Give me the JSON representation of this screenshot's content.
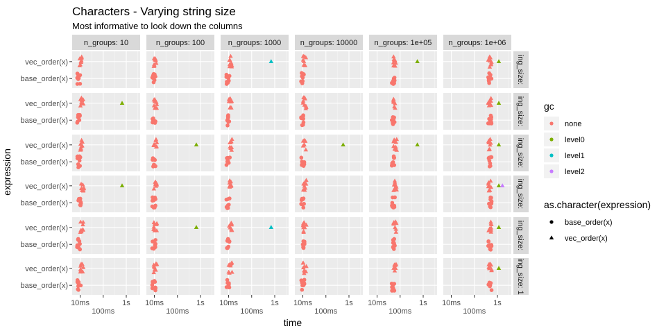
{
  "chart_data": {
    "type": "scatter",
    "title": "Characters - Varying string size",
    "subtitle": "Most informative to look down the columns",
    "xlabel": "time",
    "ylabel": "expression",
    "x_scale": "log10",
    "x_ticks": [
      "10ms",
      "100ms",
      "1s"
    ],
    "y_categories": [
      "vec_order(x)",
      "base_order(x)"
    ],
    "column_facets": [
      "n_groups: 10",
      "n_groups: 100",
      "n_groups: 1000",
      "n_groups: 10000",
      "n_groups: 1e+05",
      "n_groups: 1e+06"
    ],
    "row_facets": [
      "ing_size:",
      "ing_size:",
      "ing_size:",
      "ing_size:",
      "ing_size:",
      "ing_size: 1"
    ],
    "legend_color": {
      "title": "gc",
      "items": [
        {
          "label": "none",
          "color": "#F8766D"
        },
        {
          "label": "level0",
          "color": "#7CAE00"
        },
        {
          "label": "level1",
          "color": "#00BFC4"
        },
        {
          "label": "level2",
          "color": "#C77CFF"
        }
      ]
    },
    "legend_shape": {
      "title": "as.character(expression)",
      "items": [
        {
          "label": "base_order(x)",
          "shape": "circle"
        },
        {
          "label": "vec_order(x)",
          "shape": "triangle"
        }
      ]
    },
    "panels": [
      {
        "row": 0,
        "col": 0,
        "vec_ms": 11,
        "base_ms": 8.5,
        "gc_points": []
      },
      {
        "row": 0,
        "col": 1,
        "vec_ms": 11,
        "base_ms": 9.5,
        "gc_points": []
      },
      {
        "row": 0,
        "col": 2,
        "vec_ms": 12,
        "base_ms": 9.5,
        "gc_points": [
          {
            "series": "vec_order(x)",
            "gc": "level1",
            "ms": 700
          }
        ]
      },
      {
        "row": 0,
        "col": 3,
        "vec_ms": 12,
        "base_ms": 10,
        "gc_points": []
      },
      {
        "row": 0,
        "col": 4,
        "vec_ms": 60,
        "base_ms": 50,
        "gc_points": [
          {
            "series": "vec_order(x)",
            "gc": "level0",
            "ms": 560
          }
        ]
      },
      {
        "row": 0,
        "col": 5,
        "vec_ms": 470,
        "base_ms": 470,
        "gc_points": [
          {
            "series": "vec_order(x)",
            "gc": "level0",
            "ms": 1150
          }
        ]
      },
      {
        "row": 1,
        "col": 0,
        "vec_ms": 12,
        "base_ms": 8.5,
        "gc_points": [
          {
            "series": "vec_order(x)",
            "gc": "level0",
            "ms": 660
          }
        ]
      },
      {
        "row": 1,
        "col": 1,
        "vec_ms": 11,
        "base_ms": 9.5,
        "gc_points": []
      },
      {
        "row": 1,
        "col": 2,
        "vec_ms": 12,
        "base_ms": 9.5,
        "gc_points": []
      },
      {
        "row": 1,
        "col": 3,
        "vec_ms": 12,
        "base_ms": 10,
        "gc_points": []
      },
      {
        "row": 1,
        "col": 4,
        "vec_ms": 60,
        "base_ms": 50,
        "gc_points": []
      },
      {
        "row": 1,
        "col": 5,
        "vec_ms": 480,
        "base_ms": 470,
        "gc_points": [
          {
            "series": "vec_order(x)",
            "gc": "level0",
            "ms": 1150
          }
        ]
      },
      {
        "row": 2,
        "col": 0,
        "vec_ms": 12,
        "base_ms": 9,
        "gc_points": []
      },
      {
        "row": 2,
        "col": 1,
        "vec_ms": 11,
        "base_ms": 9.5,
        "gc_points": [
          {
            "series": "vec_order(x)",
            "gc": "level0",
            "ms": 660
          }
        ]
      },
      {
        "row": 2,
        "col": 2,
        "vec_ms": 12,
        "base_ms": 9.5,
        "gc_points": []
      },
      {
        "row": 2,
        "col": 3,
        "vec_ms": 12,
        "base_ms": 10,
        "gc_points": [
          {
            "series": "vec_order(x)",
            "gc": "level0",
            "ms": 560
          }
        ]
      },
      {
        "row": 2,
        "col": 4,
        "vec_ms": 60,
        "base_ms": 50,
        "gc_points": [
          {
            "series": "vec_order(x)",
            "gc": "level0",
            "ms": 560
          }
        ]
      },
      {
        "row": 2,
        "col": 5,
        "vec_ms": 470,
        "base_ms": 470,
        "gc_points": [
          {
            "series": "vec_order(x)",
            "gc": "level0",
            "ms": 1150
          }
        ]
      },
      {
        "row": 3,
        "col": 0,
        "vec_ms": 13,
        "base_ms": 9.5,
        "gc_points": [
          {
            "series": "vec_order(x)",
            "gc": "level0",
            "ms": 660
          }
        ]
      },
      {
        "row": 3,
        "col": 1,
        "vec_ms": 11,
        "base_ms": 9.5,
        "gc_points": []
      },
      {
        "row": 3,
        "col": 2,
        "vec_ms": 12,
        "base_ms": 9.5,
        "gc_points": []
      },
      {
        "row": 3,
        "col": 3,
        "vec_ms": 12,
        "base_ms": 10,
        "gc_points": []
      },
      {
        "row": 3,
        "col": 4,
        "vec_ms": 60,
        "base_ms": 50,
        "gc_points": []
      },
      {
        "row": 3,
        "col": 5,
        "vec_ms": 480,
        "base_ms": 470,
        "gc_points": [
          {
            "series": "vec_order(x)",
            "gc": "level0",
            "ms": 1150
          },
          {
            "series": "vec_order(x)",
            "gc": "level2",
            "ms": 1650
          }
        ]
      },
      {
        "row": 4,
        "col": 0,
        "vec_ms": 12,
        "base_ms": 8.5,
        "gc_points": []
      },
      {
        "row": 4,
        "col": 1,
        "vec_ms": 11,
        "base_ms": 9.5,
        "gc_points": [
          {
            "series": "vec_order(x)",
            "gc": "level0",
            "ms": 660
          }
        ]
      },
      {
        "row": 4,
        "col": 2,
        "vec_ms": 12,
        "base_ms": 9.5,
        "gc_points": [
          {
            "series": "vec_order(x)",
            "gc": "level1",
            "ms": 700
          }
        ]
      },
      {
        "row": 4,
        "col": 3,
        "vec_ms": 12,
        "base_ms": 10,
        "gc_points": []
      },
      {
        "row": 4,
        "col": 4,
        "vec_ms": 60,
        "base_ms": 50,
        "gc_points": []
      },
      {
        "row": 4,
        "col": 5,
        "vec_ms": 480,
        "base_ms": 470,
        "gc_points": [
          {
            "series": "vec_order(x)",
            "gc": "level0",
            "ms": 1150
          }
        ]
      },
      {
        "row": 5,
        "col": 0,
        "vec_ms": 12,
        "base_ms": 9,
        "gc_points": []
      },
      {
        "row": 5,
        "col": 1,
        "vec_ms": 11,
        "base_ms": 9.5,
        "gc_points": []
      },
      {
        "row": 5,
        "col": 2,
        "vec_ms": 12,
        "base_ms": 9.5,
        "gc_points": []
      },
      {
        "row": 5,
        "col": 3,
        "vec_ms": 12,
        "base_ms": 10,
        "gc_points": []
      },
      {
        "row": 5,
        "col": 4,
        "vec_ms": 60,
        "base_ms": 50,
        "gc_points": []
      },
      {
        "row": 5,
        "col": 5,
        "vec_ms": 480,
        "base_ms": 470,
        "gc_points": [
          {
            "series": "vec_order(x)",
            "gc": "level0",
            "ms": 1150
          }
        ]
      }
    ]
  }
}
